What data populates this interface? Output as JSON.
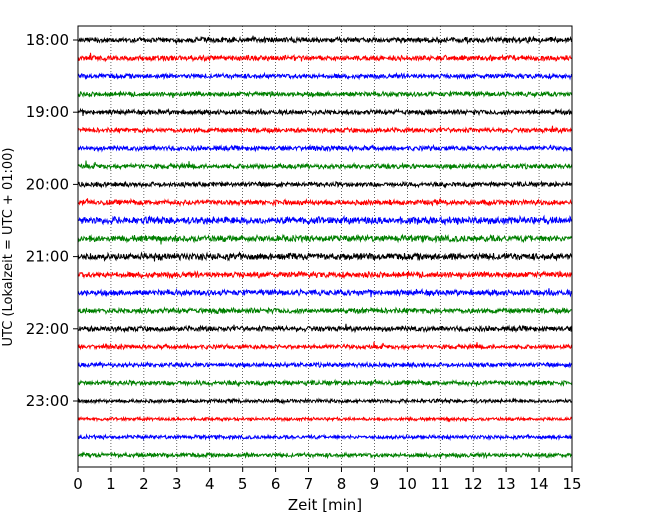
{
  "chart_data": {
    "type": "line",
    "subtype": "helicorder",
    "xlabel": "Zeit  [min]",
    "ylabel": "UTC (Lokalzeit = UTC + 01:00)",
    "xlim": [
      0,
      15
    ],
    "x_ticks": [
      "0",
      "1",
      "2",
      "3",
      "4",
      "5",
      "6",
      "7",
      "8",
      "9",
      "10",
      "11",
      "12",
      "13",
      "14",
      "15"
    ],
    "y_ticks": [
      "18:00",
      "19:00",
      "20:00",
      "21:00",
      "22:00",
      "23:00"
    ],
    "grid": "vertical dotted",
    "trace_colors": [
      "#000000",
      "#ff0000",
      "#0000ff",
      "#008000"
    ],
    "traces": [
      {
        "start": "18:00",
        "amplitude": 1.0
      },
      {
        "start": "18:15",
        "amplitude": 1.0
      },
      {
        "start": "18:30",
        "amplitude": 0.9
      },
      {
        "start": "18:45",
        "amplitude": 0.9
      },
      {
        "start": "19:00",
        "amplitude": 0.9
      },
      {
        "start": "19:15",
        "amplitude": 0.9
      },
      {
        "start": "19:30",
        "amplitude": 0.9
      },
      {
        "start": "19:45",
        "amplitude": 0.9
      },
      {
        "start": "20:00",
        "amplitude": 0.9
      },
      {
        "start": "20:15",
        "amplitude": 1.0
      },
      {
        "start": "20:30",
        "amplitude": 1.4
      },
      {
        "start": "20:45",
        "amplitude": 1.2
      },
      {
        "start": "21:00",
        "amplitude": 1.3
      },
      {
        "start": "21:15",
        "amplitude": 1.1
      },
      {
        "start": "21:30",
        "amplitude": 1.1
      },
      {
        "start": "21:45",
        "amplitude": 1.0
      },
      {
        "start": "22:00",
        "amplitude": 1.0
      },
      {
        "start": "22:15",
        "amplitude": 0.8
      },
      {
        "start": "22:30",
        "amplitude": 0.8
      },
      {
        "start": "22:45",
        "amplitude": 0.9
      },
      {
        "start": "23:00",
        "amplitude": 0.7
      },
      {
        "start": "23:15",
        "amplitude": 0.6
      },
      {
        "start": "23:30",
        "amplitude": 0.7
      },
      {
        "start": "23:45",
        "amplitude": 0.8
      }
    ]
  }
}
